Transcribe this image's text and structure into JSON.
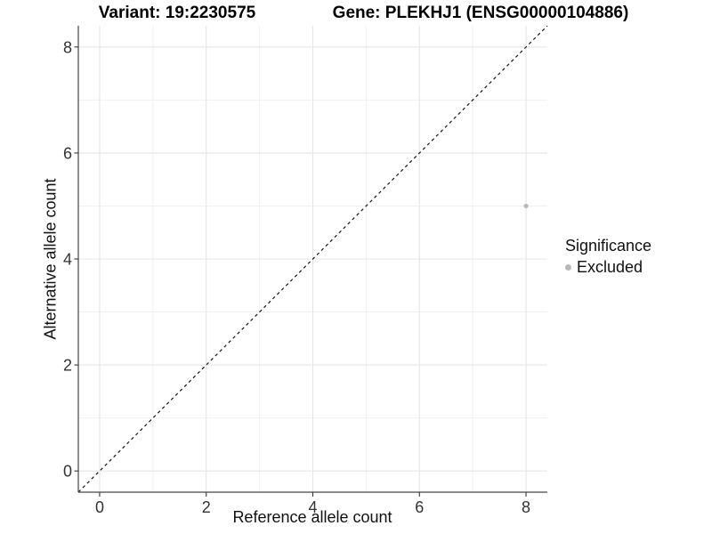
{
  "chart_data": {
    "type": "scatter",
    "title_left": "Variant: 19:2230575",
    "title_right": "Gene: PLEKHJ1 (ENSG00000104886)",
    "xlabel": "Reference allele count",
    "ylabel": "Alternative allele count",
    "xlim": [
      -0.4,
      8.4
    ],
    "ylim": [
      -0.4,
      8.4
    ],
    "x_ticks": {
      "major": [
        0,
        2,
        4,
        6,
        8
      ],
      "minor": [
        1,
        3,
        5,
        7
      ]
    },
    "y_ticks": {
      "major": [
        0,
        2,
        4,
        6,
        8
      ],
      "minor": [
        1,
        3,
        5,
        7
      ]
    },
    "grid": "major+minor",
    "points": [
      {
        "x": 8,
        "y": 5,
        "series": "Excluded"
      }
    ],
    "reference_line": {
      "slope": 1,
      "intercept": 0,
      "style": "dashed"
    },
    "legend": {
      "title": "Significance",
      "position": "right",
      "items": [
        {
          "label": "Excluded",
          "color": "#b9b9b9",
          "marker": "circle"
        }
      ]
    }
  },
  "colors": {
    "background": "#ffffff",
    "grid_major": "#e5e5e5",
    "grid_minor": "#f0f0f0",
    "axis_line": "#464646",
    "tick_mark": "#333333",
    "tick_label": "#333333",
    "dashed_line": "#141414",
    "point": "#b9b9b9"
  }
}
